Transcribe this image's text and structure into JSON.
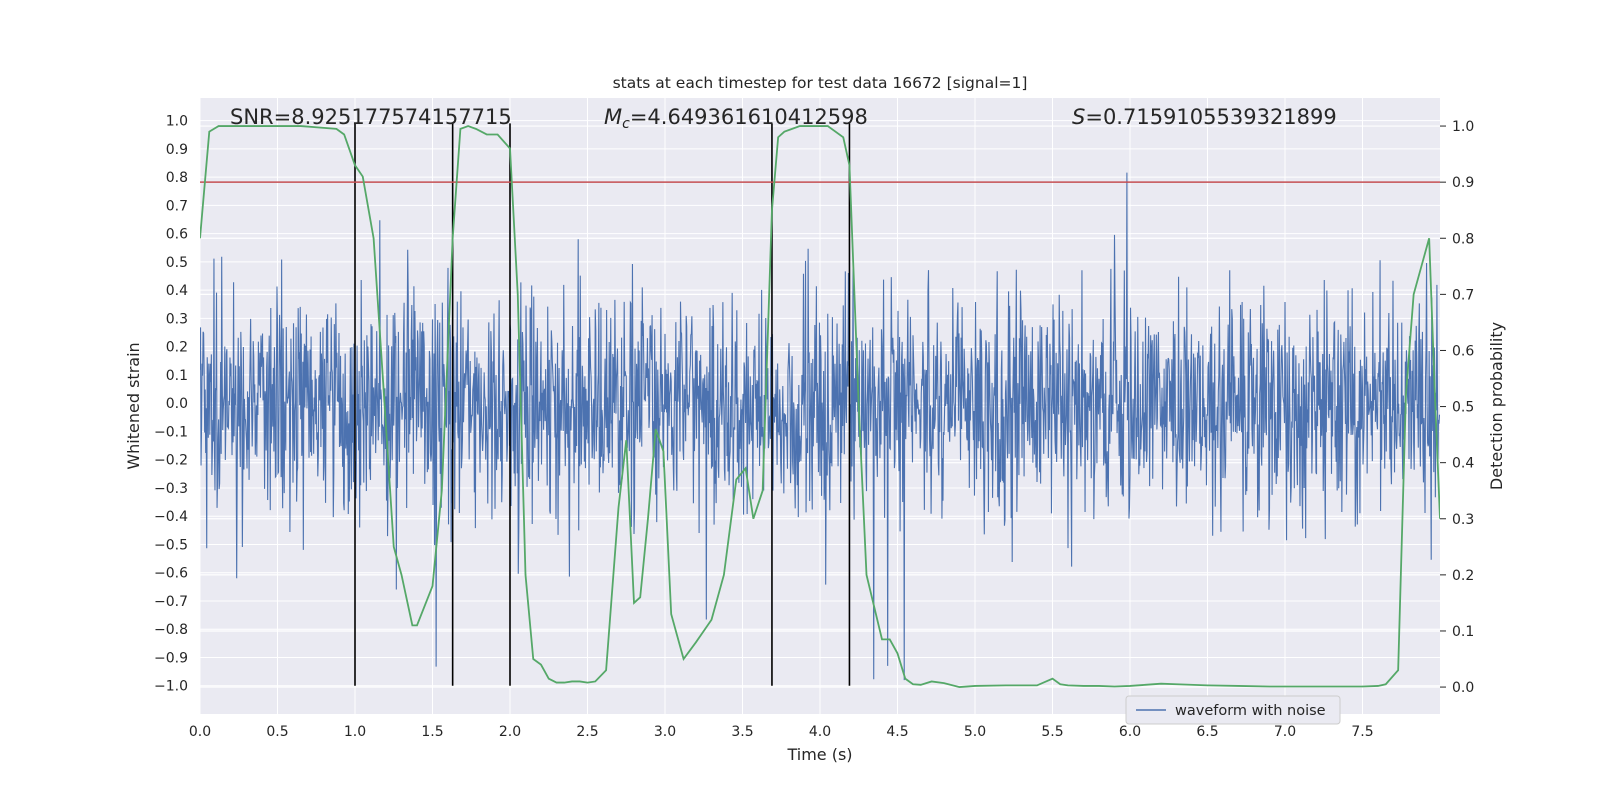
{
  "chart_data": {
    "type": "line",
    "title": "stats at each timestep for test data 16672 [signal=1]",
    "xlabel": "Time (s)",
    "ylabel": "Whitened strain",
    "y2label": "Detection probability",
    "xlim": [
      0,
      8
    ],
    "ylim": [
      -1.1,
      1.08
    ],
    "y2lim": [
      -0.048,
      1.05
    ],
    "xticks": [
      "0.0",
      "0.5",
      "1.0",
      "1.5",
      "2.0",
      "2.5",
      "3.0",
      "3.5",
      "4.0",
      "4.5",
      "5.0",
      "5.5",
      "6.0",
      "6.5",
      "7.0",
      "7.5"
    ],
    "xtick_values": [
      0,
      0.5,
      1,
      1.5,
      2,
      2.5,
      3,
      3.5,
      4,
      4.5,
      5,
      5.5,
      6,
      6.5,
      7,
      7.5
    ],
    "yticks": [
      "1.0",
      "0.9",
      "0.8",
      "0.7",
      "0.6",
      "0.5",
      "0.4",
      "0.3",
      "0.2",
      "0.1",
      "0.0",
      "−0.1",
      "−0.2",
      "−0.3",
      "−0.4",
      "−0.5",
      "−0.6",
      "−0.7",
      "−0.8",
      "−0.9",
      "−1.0"
    ],
    "ytick_values": [
      1.0,
      0.9,
      0.8,
      0.7,
      0.6,
      0.5,
      0.4,
      0.3,
      0.2,
      0.1,
      0.0,
      -0.1,
      -0.2,
      -0.3,
      -0.4,
      -0.5,
      -0.6,
      -0.7,
      -0.8,
      -0.9,
      -1.0
    ],
    "y2ticks": [
      "1.0",
      "0.9",
      "0.8",
      "0.7",
      "0.6",
      "0.5",
      "0.4",
      "0.3",
      "0.2",
      "0.1",
      "0.0"
    ],
    "y2tick_values": [
      1.0,
      0.9,
      0.8,
      0.7,
      0.6,
      0.5,
      0.4,
      0.3,
      0.2,
      0.1,
      0.0
    ],
    "annotations": {
      "snr": "SNR=8.925177574157715",
      "mc_symbol": "M",
      "mc_subscript": "c",
      "mc_value": "=4.649361610412598",
      "s_symbol": "S",
      "s_value": "=0.7159105539321899"
    },
    "threshold": {
      "value": 0.9,
      "axis": "right",
      "color": "#c44e52"
    },
    "vertical_lines": [
      1.0,
      1.63,
      2.0,
      3.69,
      4.19
    ],
    "vline_ymax": 0.99,
    "vline_ymin": -1.0,
    "series": [
      {
        "name": "waveform with noise",
        "color": "#4c72b0",
        "kind": "noise",
        "seed": 16672,
        "duration": 8.0
      },
      {
        "name": "detection probability",
        "color": "#55a868",
        "axis": "right",
        "x": [
          0.0,
          0.06,
          0.12,
          0.25,
          0.5,
          0.65,
          0.88,
          0.93,
          1.0,
          1.05,
          1.12,
          1.18,
          1.25,
          1.3,
          1.37,
          1.4,
          1.5,
          1.56,
          1.63,
          1.68,
          1.73,
          1.78,
          1.85,
          1.92,
          2.0,
          2.05,
          2.1,
          2.15,
          2.2,
          2.25,
          2.3,
          2.35,
          2.4,
          2.45,
          2.5,
          2.55,
          2.62,
          2.7,
          2.75,
          2.8,
          2.84,
          2.89,
          2.94,
          2.99,
          3.04,
          3.12,
          3.2,
          3.3,
          3.38,
          3.46,
          3.52,
          3.57,
          3.63,
          3.69,
          3.73,
          3.77,
          3.82,
          3.87,
          3.95,
          4.05,
          4.15,
          4.19,
          4.25,
          4.3,
          4.4,
          4.45,
          4.5,
          4.55,
          4.6,
          4.65,
          4.72,
          4.8,
          4.9,
          5.0,
          5.2,
          5.4,
          5.5,
          5.55,
          5.6,
          5.7,
          5.8,
          5.9,
          6.0,
          6.1,
          6.2,
          6.3,
          6.5,
          6.7,
          6.9,
          7.1,
          7.3,
          7.5,
          7.6,
          7.65,
          7.73,
          7.78,
          7.83,
          7.88,
          7.93,
          7.97,
          8.0
        ],
        "y": [
          0.8,
          0.99,
          1.0,
          1.0,
          1.0,
          1.0,
          0.995,
          0.985,
          0.93,
          0.91,
          0.8,
          0.55,
          0.25,
          0.2,
          0.11,
          0.11,
          0.18,
          0.35,
          0.8,
          0.995,
          1.0,
          0.995,
          0.985,
          0.985,
          0.96,
          0.7,
          0.2,
          0.05,
          0.04,
          0.015,
          0.008,
          0.008,
          0.01,
          0.01,
          0.008,
          0.01,
          0.03,
          0.32,
          0.44,
          0.15,
          0.16,
          0.3,
          0.46,
          0.42,
          0.13,
          0.05,
          0.08,
          0.12,
          0.2,
          0.37,
          0.39,
          0.3,
          0.35,
          0.85,
          0.98,
          0.99,
          0.995,
          1.0,
          1.0,
          1.0,
          0.98,
          0.93,
          0.5,
          0.2,
          0.085,
          0.085,
          0.06,
          0.015,
          0.005,
          0.004,
          0.01,
          0.007,
          0.0,
          0.002,
          0.003,
          0.003,
          0.015,
          0.005,
          0.003,
          0.002,
          0.002,
          0.001,
          0.002,
          0.004,
          0.006,
          0.005,
          0.003,
          0.002,
          0.001,
          0.001,
          0.001,
          0.001,
          0.002,
          0.005,
          0.03,
          0.52,
          0.7,
          0.75,
          0.8,
          0.5,
          0.3
        ]
      }
    ],
    "legend": {
      "label": "waveform with noise",
      "placement": "lower-right"
    },
    "grid": true
  }
}
